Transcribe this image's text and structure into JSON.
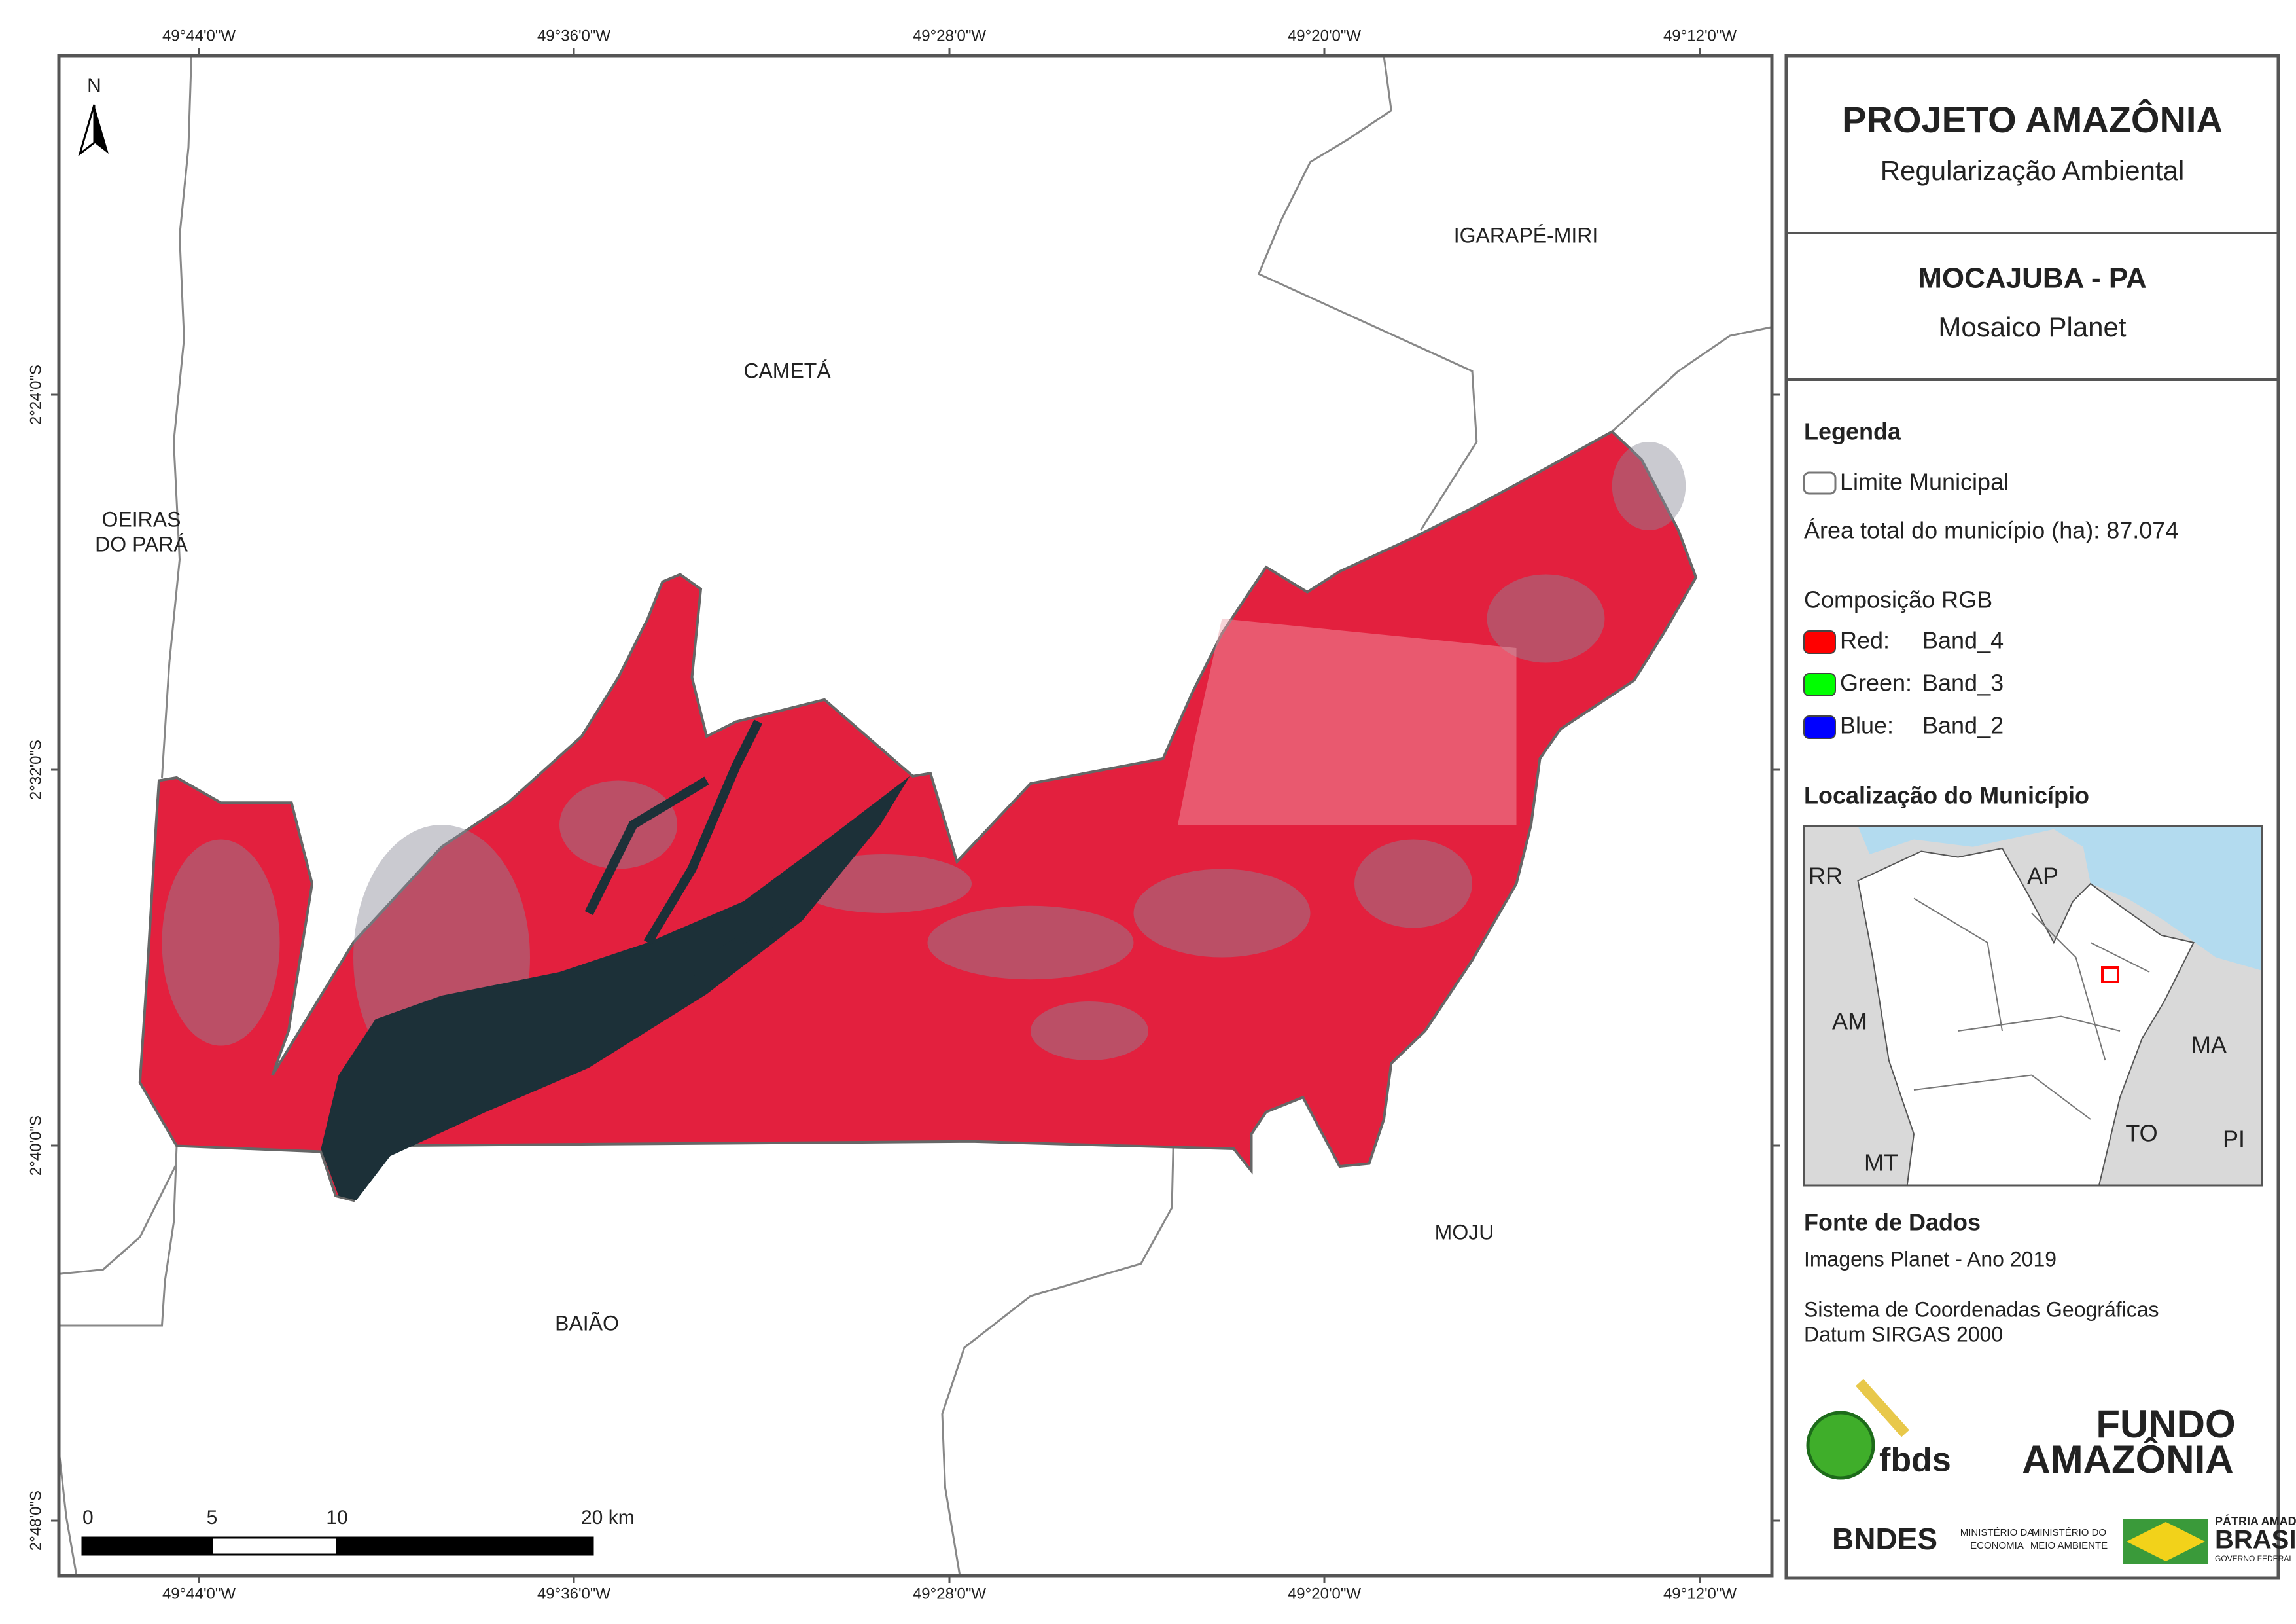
{
  "graticule": {
    "longitude": [
      "49°44'0\"W",
      "49°36'0\"W",
      "49°28'0\"W",
      "49°20'0\"W",
      "49°12'0\"W"
    ],
    "latitude": [
      "2°24'0\"S",
      "2°32'0\"S",
      "2°40'0\"S",
      "2°48'0\"S"
    ]
  },
  "north_arrow": "N",
  "places": [
    {
      "lines": [
        "CAMETÁ"
      ]
    },
    {
      "lines": [
        "IGARAPÉ-MIRI"
      ]
    },
    {
      "lines": [
        "OEIRAS",
        "DO PARÁ"
      ]
    },
    {
      "lines": [
        "BAIÃO"
      ]
    },
    {
      "lines": [
        "MOJU"
      ]
    }
  ],
  "scale_bar": [
    "0",
    "5",
    "10",
    "20 km"
  ],
  "panel": {
    "header": {
      "title": "PROJETO AMAZÔNIA",
      "subtitle": "Regularização Ambiental"
    },
    "map_info": {
      "title": "MOCAJUBA - PA",
      "subtitle": "Mosaico Planet"
    },
    "legend": {
      "title": "Legenda",
      "boundary": "Limite Municipal",
      "area": "Área total do município (ha): 87.074",
      "rgb_title": "Composição RGB",
      "bands": [
        {
          "channel": "Red:",
          "band": "Band_4",
          "color": "#ff0000"
        },
        {
          "channel": "Green:",
          "band": "Band_3",
          "color": "#00ff00"
        },
        {
          "channel": "Blue:",
          "band": "Band_2",
          "color": "#0000ff"
        }
      ]
    },
    "location": {
      "title": "Localização do Município",
      "labels": [
        "RR",
        "AP",
        "AM",
        "MA",
        "TO",
        "MT",
        "PI"
      ]
    },
    "sources": {
      "title": "Fonte de Dados",
      "lines": [
        "Imagens Planet - Ano 2019",
        "Sistema de Coordenadas Geográficas",
        "Datum SIRGAS 2000"
      ]
    },
    "logos": {
      "fbds": "fbds",
      "fundo": "FUNDO",
      "amazonia": "AMAZÔNIA",
      "bndes": "BNDES",
      "ministry_economy": [
        "MINISTÉRIO DA",
        "ECONOMIA"
      ],
      "ministry_environment": [
        "MINISTÉRIO DO",
        "MEIO AMBIENTE"
      ],
      "brasil": [
        "PÁTRIA AMADA",
        "BRASIL",
        "GOVERNO FEDERAL"
      ]
    }
  }
}
